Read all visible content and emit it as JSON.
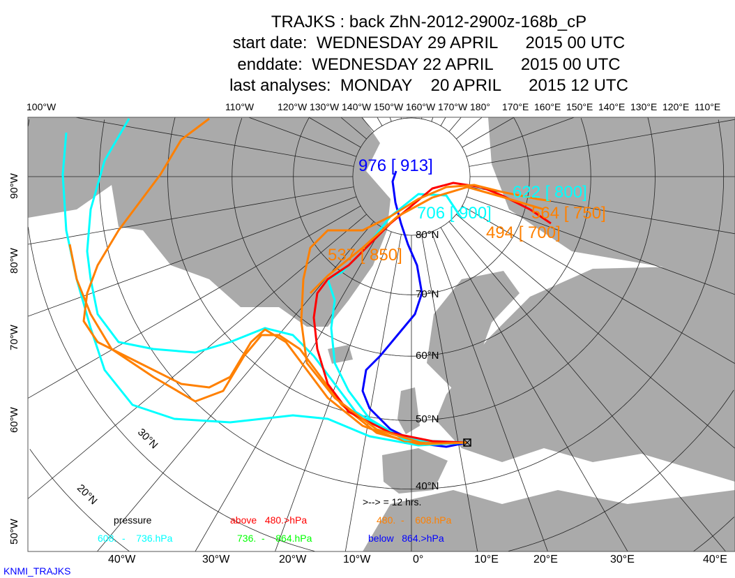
{
  "title": {
    "line1": "TRAJKS : back ZhN-2012-2900z-168b_cP",
    "line2": "start date:  WEDNESDAY 29 APRIL      2015 00 UTC",
    "line3": "enddate:  WEDNESDAY 22 APRIL      2015 00 UTC",
    "line4": "last analyses:  MONDAY    20 APRIL      2015 12 UTC"
  },
  "top_lon_labels": [
    "100°W",
    "110°W",
    "120°W",
    "130°W",
    "140°W",
    "150°W",
    "160°W",
    "170°W",
    "180°",
    "170°E",
    "160°E",
    "150°E",
    "140°E",
    "130°E",
    "120°E",
    "110°E"
  ],
  "bottom_lon_labels": [
    "40°W",
    "30°W",
    "20°W",
    "10°W",
    "0°",
    "10°E",
    "20°E",
    "30°E",
    "40°E"
  ],
  "left_lon_labels": [
    "90°W",
    "80°W",
    "70°W",
    "60°W",
    "50°W"
  ],
  "lat_labels": [
    "80°N",
    "70°N",
    "60°N",
    "50°N",
    "40°N",
    "30°N",
    "20°N"
  ],
  "trajectory_labels": [
    {
      "text": "976 [ 913]",
      "color": "#0000ff"
    },
    {
      "text": "706 [ 900]",
      "color": "#00ffff"
    },
    {
      "text": "622 [ 800]",
      "color": "#00ffff"
    },
    {
      "text": "564 [ 750]",
      "color": "#ff8000"
    },
    {
      "text": "494 [ 700]",
      "color": "#ff8000"
    },
    {
      "text": "537 [ 850]",
      "color": "#ff8000"
    }
  ],
  "arrow_note": ">--> = 12 hrs.",
  "legend": {
    "title": "pressure",
    "items": [
      {
        "a": "above",
        "b": "480.>hPa",
        "color": "#ff0000"
      },
      {
        "a": "480.  -",
        "b": "608.hPa",
        "color": "#ff8000"
      },
      {
        "a": "608.  -",
        "b": "736.hPa",
        "color": "#00ffff"
      },
      {
        "a": "736.  -",
        "b": "864.hPa",
        "color": "#00ff00"
      },
      {
        "a": "below",
        "b": "864.>hPa",
        "color": "#0000ff"
      }
    ]
  },
  "footer": "KNMI_TRAJKS",
  "colors": {
    "land": "#aaaaaa",
    "ocean": "#ffffff",
    "footer": "#0000ff"
  }
}
